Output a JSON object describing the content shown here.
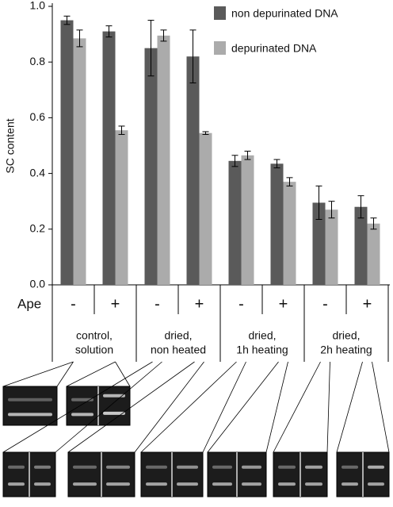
{
  "chart_data": {
    "type": "bar",
    "y_label": "SC content",
    "x_label": "Ape",
    "categories": [
      "-",
      "+",
      "-",
      "+",
      "-",
      "+",
      "-",
      "+"
    ],
    "groups": [
      [
        "control,",
        "solution"
      ],
      [
        "dried,",
        "non heated"
      ],
      [
        "dried,",
        "1h heating"
      ],
      [
        "dried,",
        "2h heating"
      ]
    ],
    "series": [
      {
        "name": "non depurinated DNA",
        "color": "#5a5a5a",
        "values": [
          0.95,
          0.91,
          0.85,
          0.82,
          0.445,
          0.435,
          0.295,
          0.28
        ],
        "errors": [
          0.015,
          0.02,
          0.1,
          0.095,
          0.02,
          0.015,
          0.06,
          0.04
        ]
      },
      {
        "name": "depurinated DNA",
        "color": "#ababab",
        "values": [
          0.885,
          0.555,
          0.895,
          0.545,
          0.465,
          0.37,
          0.27,
          0.22
        ],
        "errors": [
          0.03,
          0.015,
          0.02,
          0.005,
          0.015,
          0.015,
          0.03,
          0.02
        ]
      }
    ],
    "ylim": [
      0,
      1
    ],
    "yticks": [
      {
        "value": 0,
        "label": "0.0"
      },
      0.2,
      0.4,
      0.6,
      0.8,
      {
        "value": 1,
        "label": "1.0"
      }
    ],
    "legend": "top-right"
  }
}
